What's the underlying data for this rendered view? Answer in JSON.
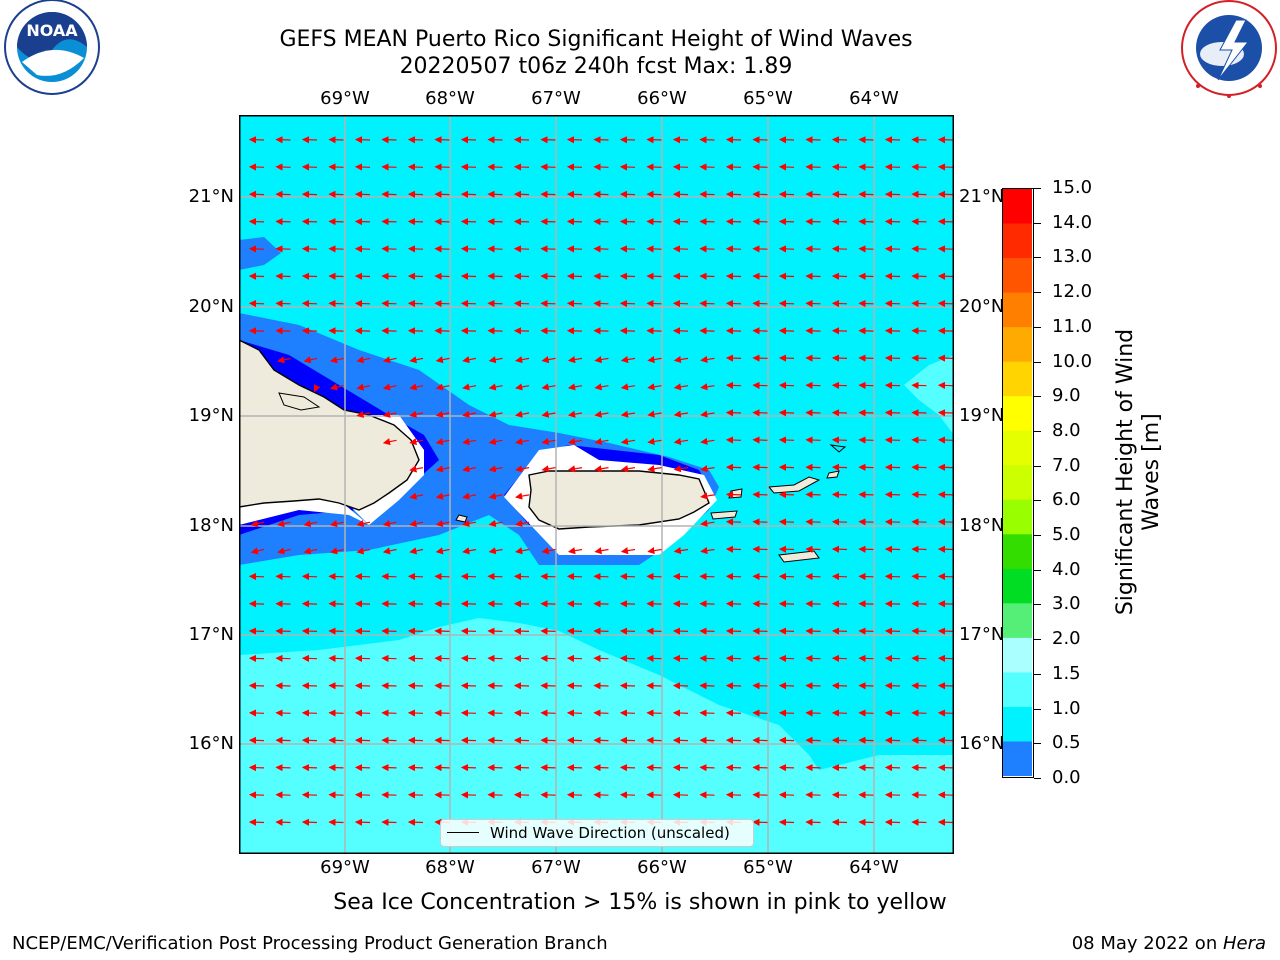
{
  "title": {
    "line1": "GEFS MEAN Puerto Rico Significant Height of Wind Waves",
    "line2": "20220507 t06z 240h fcst   Max: 1.89"
  },
  "map": {
    "lon_labels": [
      "69°W",
      "68°W",
      "67°W",
      "66°W",
      "65°W",
      "64°W"
    ],
    "lat_labels_left": [
      "21°N",
      "20°N",
      "19°N",
      "18°N",
      "17°N",
      "16°N"
    ],
    "lat_labels_right": [
      "21°N",
      "20°N",
      "19°N",
      "18°N",
      "17°N",
      "16°N"
    ],
    "legend_label": "Wind Wave Direction (unscaled)",
    "arrow_color": "#ff0000",
    "land_color": "#efebdc"
  },
  "colorbar": {
    "label": "Significant Height of Wind Waves [m]",
    "label_line1": "Significant Height of Wind",
    "label_line2": "Waves [m]",
    "ticks": [
      "15.0",
      "14.0",
      "13.0",
      "12.0",
      "11.0",
      "10.0",
      "9.0",
      "8.0",
      "7.0",
      "6.0",
      "5.0",
      "4.0",
      "3.0",
      "2.0",
      "1.5",
      "1.0",
      "0.5",
      "0.0"
    ],
    "colors": [
      "#ff0000",
      "#ff2a00",
      "#ff5500",
      "#ff8000",
      "#ffaa00",
      "#ffd400",
      "#ffff00",
      "#e6ff00",
      "#ccff00",
      "#99ff00",
      "#33dd00",
      "#00dd22",
      "#55ee77",
      "#aaffff",
      "#55ffff",
      "#00f2ff",
      "#1e7fff",
      "#0000ff"
    ]
  },
  "note": "Sea Ice Concentration > 15% is shown in pink to yellow",
  "footer": {
    "left": "NCEP/EMC/Verification Post Processing Product Generation Branch",
    "right_prefix": "08 May 2022 on ",
    "right_host": "Hera"
  },
  "logos": {
    "noaa": "NOAA",
    "nws": "NATIONAL WEATHER SERVICE",
    "noaa_ring_top": "NATIONAL OCEANIC AND ATMOSPHERIC ADMINISTRATION",
    "noaa_ring_bottom": "U.S. DEPARTMENT OF COMMERCE"
  }
}
